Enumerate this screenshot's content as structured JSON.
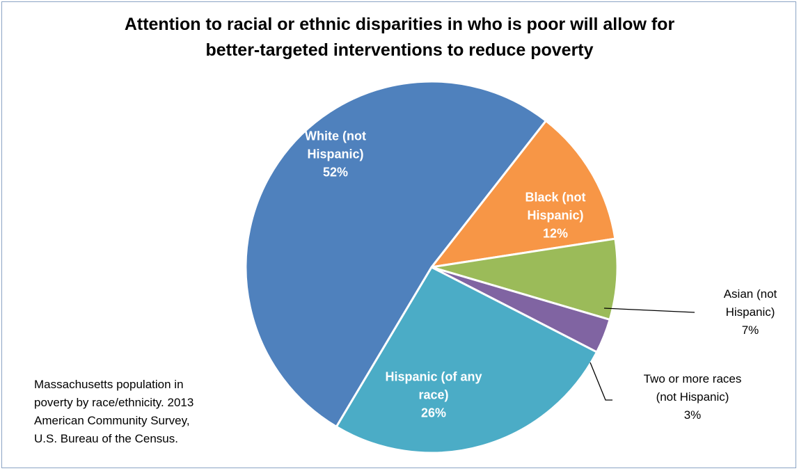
{
  "chart_data": {
    "type": "pie",
    "title": [
      "Attention to racial or ethnic disparities in who is poor will allow for",
      "better-targeted interventions to reduce poverty"
    ],
    "start_angle_deg": 38,
    "direction": "clockwise",
    "slices": [
      {
        "label": [
          "Black (not",
          "Hispanic)"
        ],
        "value": 12,
        "value_label": "12%",
        "color": "#f79646",
        "label_color": "#ffffff",
        "label_bold": true,
        "label_inside": true
      },
      {
        "label": [
          "Asian (not",
          "Hispanic)"
        ],
        "value": 7,
        "value_label": "7%",
        "color": "#9bbb59",
        "label_color": "#000000",
        "label_bold": false,
        "label_inside": false
      },
      {
        "label": [
          "Two or more races",
          "(not Hispanic)"
        ],
        "value": 3,
        "value_label": "3%",
        "color": "#8064a2",
        "label_color": "#000000",
        "label_bold": false,
        "label_inside": false
      },
      {
        "label": [
          "Hispanic (of any",
          "race)"
        ],
        "value": 26,
        "value_label": "26%",
        "color": "#4bacc6",
        "label_color": "#ffffff",
        "label_bold": true,
        "label_inside": true
      },
      {
        "label": [
          "White (not",
          "Hispanic)"
        ],
        "value": 52,
        "value_label": "52%",
        "color": "#4f81bd",
        "label_color": "#ffffff",
        "label_bold": true,
        "label_inside": true
      }
    ],
    "source_note": [
      "Massachusetts population in",
      "poverty by race/ethnicity. 2013",
      "American Community Survey,",
      "U.S. Bureau of the Census."
    ]
  }
}
